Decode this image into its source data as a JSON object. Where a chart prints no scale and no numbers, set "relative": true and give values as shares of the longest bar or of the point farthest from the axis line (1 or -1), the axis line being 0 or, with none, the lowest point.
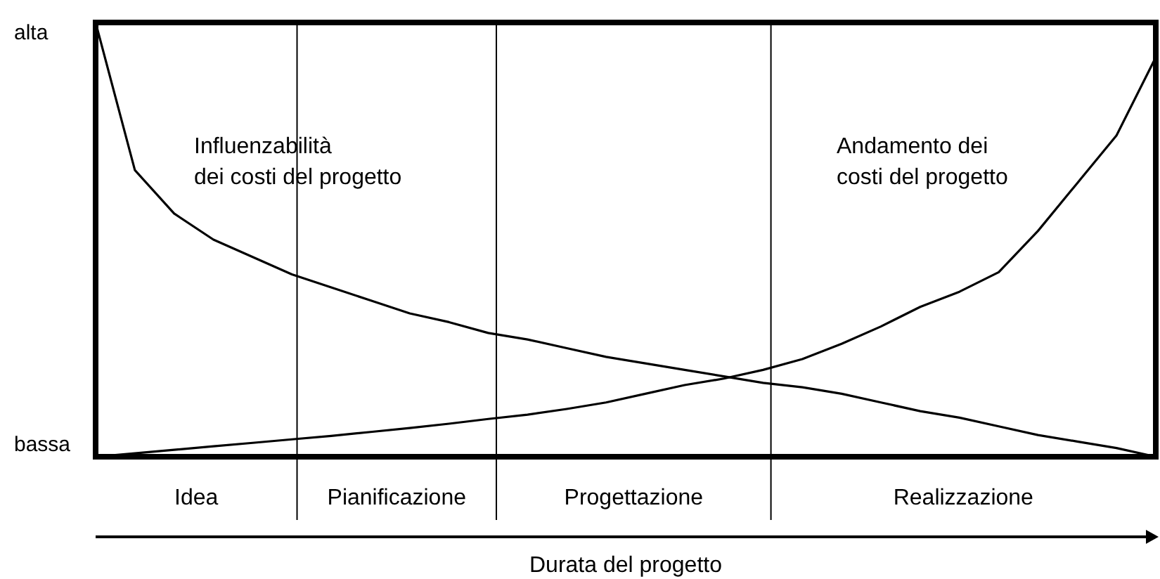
{
  "chart_data": {
    "type": "line",
    "xlabel": "Durata del progetto",
    "categories": [
      null,
      null,
      null,
      null,
      null,
      null,
      null,
      null,
      null,
      null,
      null,
      null,
      null,
      null,
      null,
      null,
      null,
      null,
      null,
      null,
      null,
      null,
      null,
      null,
      null,
      null,
      null,
      null
    ],
    "series": [
      {
        "name": "Influenzabilità\ndei costi del progetto",
        "color": "#000000",
        "values": [
          1,
          0.66,
          0.56,
          0.5,
          0.46,
          0.42,
          0.39,
          0.36,
          0.33,
          0.31,
          0.285,
          0.27,
          0.25,
          0.23,
          0.215,
          0.2,
          0.185,
          0.17,
          0.16,
          0.145,
          0.125,
          0.105,
          0.09,
          0.07,
          0.05,
          0.035,
          0.02,
          0
        ]
      },
      {
        "name": "Andamento dei\ncosti del progetto",
        "color": "#000000",
        "values": [
          0,
          0.008,
          0.016,
          0.024,
          0.032,
          0.04,
          0.048,
          0.057,
          0.066,
          0.076,
          0.087,
          0.097,
          0.11,
          0.125,
          0.145,
          0.165,
          0.18,
          0.2,
          0.225,
          0.26,
          0.3,
          0.345,
          0.38,
          0.425,
          0.52,
          0.63,
          0.74,
          0.92
        ]
      }
    ],
    "relative": true,
    "tick_labels": false,
    "annotations": [
      "alta",
      "bassa",
      "Idea",
      "Pianificazione",
      "Progettazione",
      "Realizzazione"
    ],
    "grid": false,
    "legend": false,
    "marker": "none",
    "line_style": "solid"
  }
}
